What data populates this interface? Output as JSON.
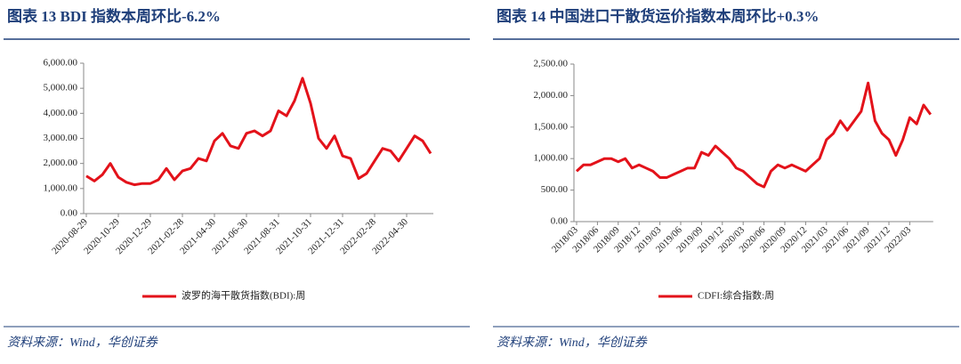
{
  "chart_data": [
    {
      "type": "line",
      "title": "图表 13   BDI 指数本周环比-6.2%",
      "source": "资料来源：Wind，华创证券",
      "categories": [
        "2020-08-29",
        null,
        null,
        null,
        "2020-10-29",
        null,
        null,
        null,
        "2020-12-29",
        null,
        null,
        null,
        "2021-02-28",
        null,
        null,
        null,
        "2021-04-30",
        null,
        null,
        null,
        "2021-06-30",
        null,
        null,
        null,
        "2021-08-31",
        null,
        null,
        null,
        "2021-10-31",
        null,
        null,
        null,
        "2021-12-31",
        null,
        null,
        null,
        "2022-02-28",
        null,
        null,
        null,
        "2022-04-30",
        null,
        null,
        null
      ],
      "series": [
        {
          "name": "波罗的海干散货指数(BDI):周",
          "color": "#e3121a",
          "values": [
            1500,
            1300,
            1550,
            2000,
            1450,
            1250,
            1150,
            1200,
            1200,
            1350,
            1800,
            1350,
            1700,
            1800,
            2200,
            2100,
            2900,
            3200,
            2700,
            2600,
            3200,
            3300,
            3100,
            3300,
            4100,
            3900,
            4500,
            5400,
            4400,
            3000,
            2600,
            3100,
            2300,
            2200,
            1400,
            1600,
            2100,
            2600,
            2500,
            2100,
            2600,
            3100,
            2900,
            2400
          ]
        }
      ],
      "ylim": [
        0,
        6000
      ],
      "yticks": [
        {
          "value": 0,
          "label": "0.00"
        },
        {
          "value": 1000,
          "label": "1,000.00"
        },
        {
          "value": 2000,
          "label": "2,000.00"
        },
        {
          "value": 3000,
          "label": "3,000.00"
        },
        {
          "value": 4000,
          "label": "4,000.00"
        },
        {
          "value": 5000,
          "label": "5,000.00"
        },
        {
          "value": 6000,
          "label": "6,000.00"
        }
      ],
      "grid": false,
      "legend": "bottom"
    },
    {
      "type": "line",
      "title": "图表 14   中国进口干散货运价指数本周环比+0.3%",
      "source": "资料来源：Wind，华创证券",
      "categories": [
        "2018/03",
        null,
        null,
        "2018/06",
        null,
        null,
        "2018/09",
        null,
        null,
        "2018/12",
        null,
        null,
        "2019/03",
        null,
        null,
        "2019/06",
        null,
        null,
        "2019/09",
        null,
        null,
        "2019/12",
        null,
        null,
        "2020/03",
        null,
        null,
        "2020/06",
        null,
        null,
        "2020/09",
        null,
        null,
        "2020/12",
        null,
        null,
        "2021/03",
        null,
        null,
        "2021/06",
        null,
        null,
        "2021/09",
        null,
        null,
        "2021/12",
        null,
        null,
        "2022/03",
        null,
        null,
        null
      ],
      "series": [
        {
          "name": "CDFI:综合指数:周",
          "color": "#e3121a",
          "values": [
            800,
            900,
            900,
            950,
            1000,
            1000,
            950,
            1000,
            850,
            900,
            850,
            800,
            700,
            700,
            750,
            800,
            850,
            850,
            1100,
            1050,
            1200,
            1100,
            1000,
            850,
            800,
            700,
            600,
            550,
            800,
            900,
            850,
            900,
            850,
            800,
            900,
            1000,
            1300,
            1400,
            1600,
            1450,
            1600,
            1750,
            2200,
            1600,
            1400,
            1300,
            1050,
            1300,
            1650,
            1550,
            1850,
            1700
          ]
        }
      ],
      "ylim": [
        0,
        2500
      ],
      "yticks": [
        {
          "value": 0,
          "label": "0.00"
        },
        {
          "value": 500,
          "label": "500.00"
        },
        {
          "value": 1000,
          "label": "1,000.00"
        },
        {
          "value": 1500,
          "label": "1,500.00"
        },
        {
          "value": 2000,
          "label": "2,000.00"
        },
        {
          "value": 2500,
          "label": "2,500.00"
        }
      ],
      "grid": false,
      "legend": "bottom"
    }
  ]
}
